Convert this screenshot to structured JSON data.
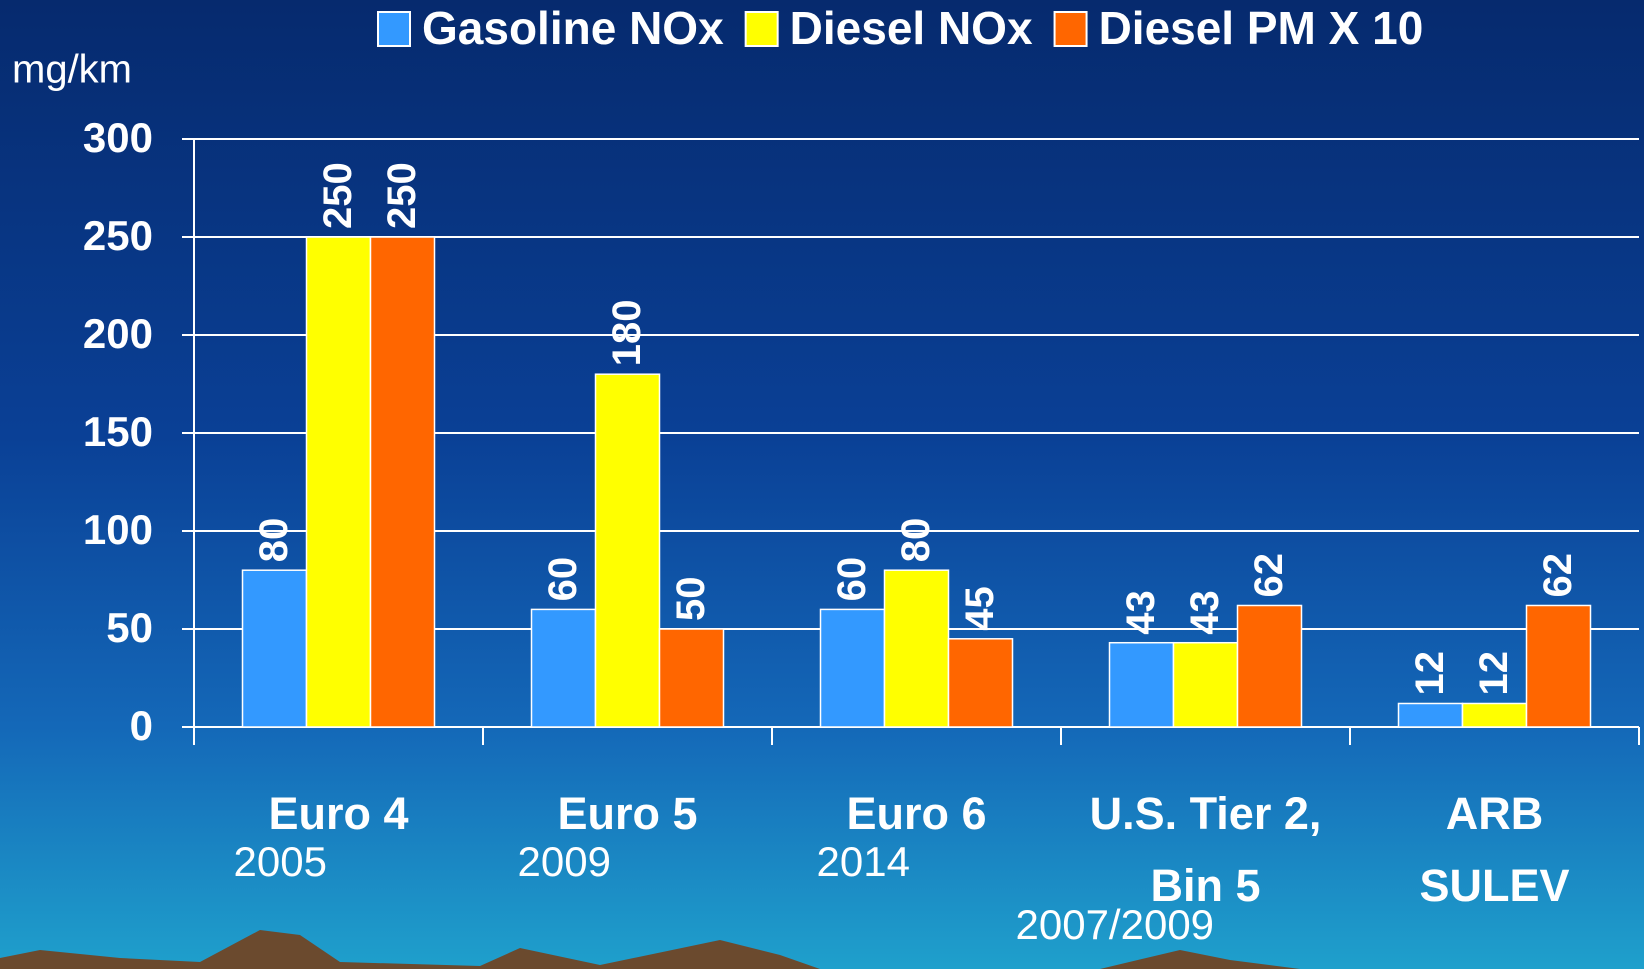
{
  "chart_data": {
    "type": "bar",
    "y_label": "mg/km",
    "categories": [
      "Euro 4",
      "Euro 5",
      "Euro 6",
      "U.S. Tier 2,\nBin 5",
      "ARB\nSULEV"
    ],
    "years": [
      "2005",
      "2009",
      "2014",
      "2007/2009",
      null
    ],
    "series": [
      {
        "name": "Gasoline NOx",
        "color": "#3399ff",
        "values": [
          80,
          60,
          60,
          43,
          12
        ]
      },
      {
        "name": "Diesel NOx",
        "color": "#ffff00",
        "values": [
          250,
          180,
          80,
          43,
          12
        ]
      },
      {
        "name": "Diesel PM X 10",
        "color": "#ff6600",
        "values": [
          250,
          50,
          45,
          62,
          62
        ]
      }
    ],
    "ylim": [
      0,
      300
    ],
    "yticks": [
      0,
      50,
      100,
      150,
      200,
      250,
      300
    ],
    "grid": true,
    "legend": "top"
  }
}
